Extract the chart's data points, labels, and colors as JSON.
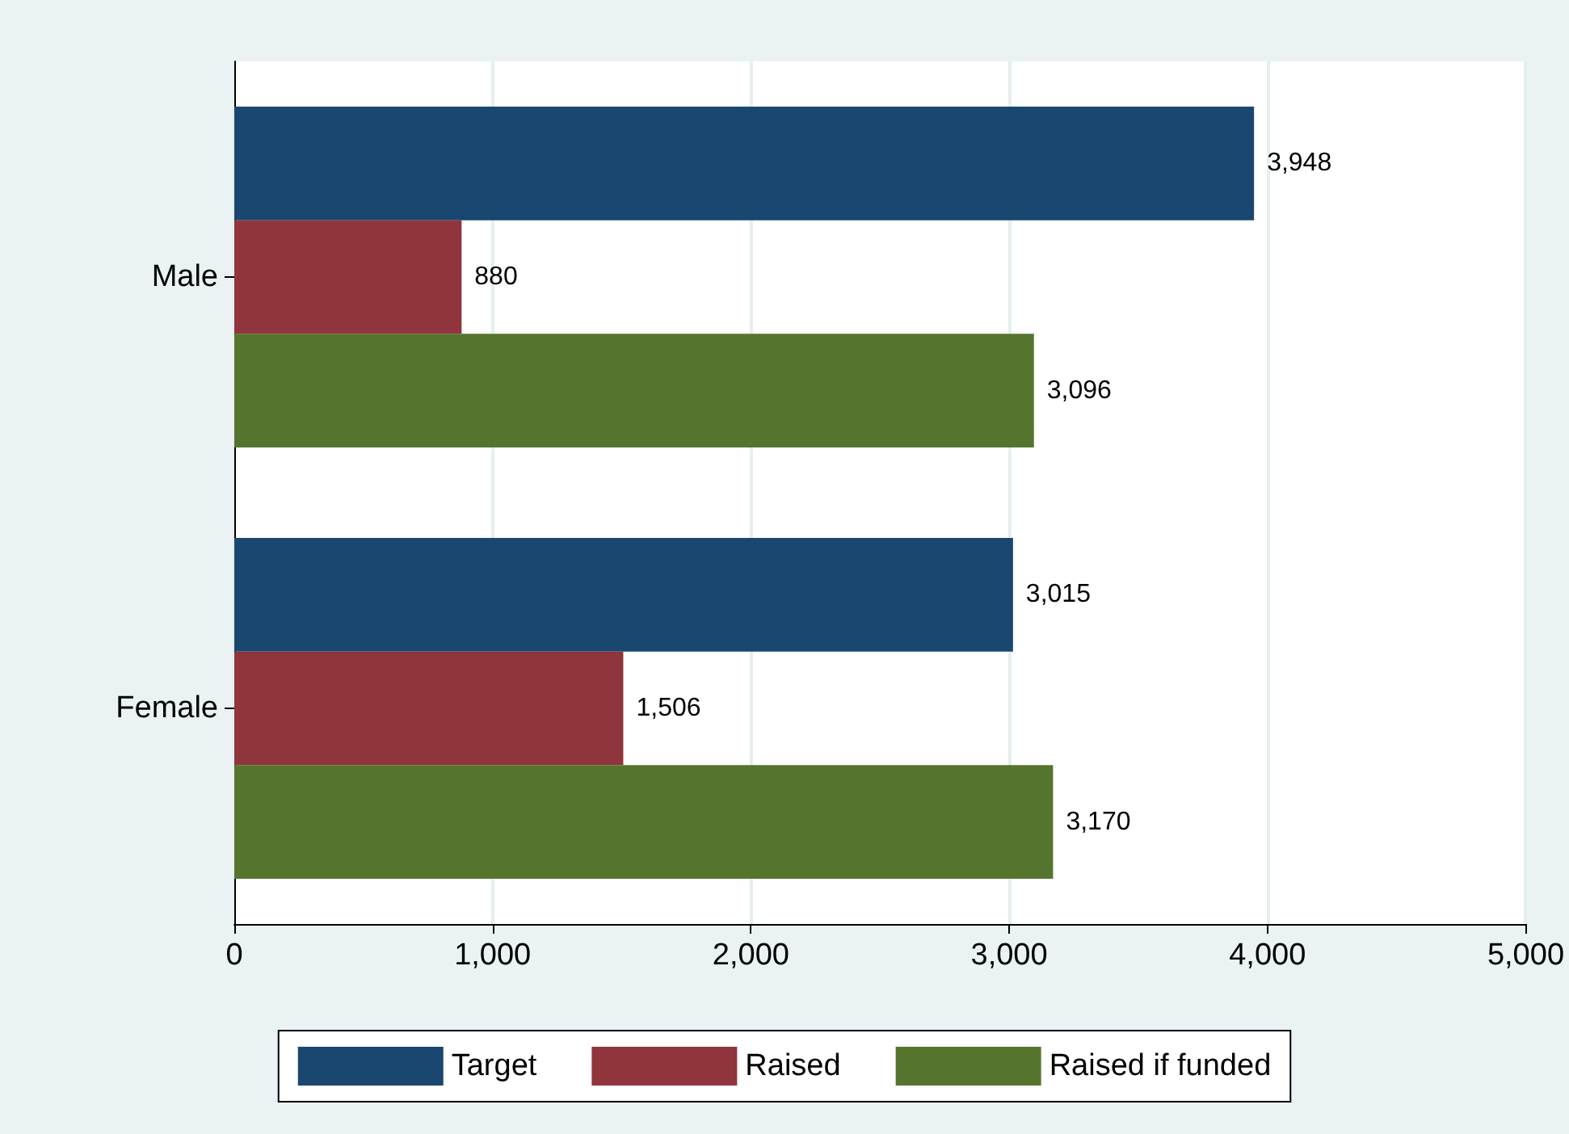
{
  "chart_data": {
    "type": "bar",
    "orientation": "horizontal",
    "categories": [
      "Male",
      "Female"
    ],
    "series": [
      {
        "name": "Target",
        "color": "#1a476f",
        "values": [
          3948,
          3015
        ],
        "value_labels": [
          "3,948",
          "3,015"
        ]
      },
      {
        "name": "Raised",
        "color": "#90353b",
        "values": [
          880,
          1506
        ],
        "value_labels": [
          "880",
          "1,506"
        ]
      },
      {
        "name": "Raised if funded",
        "color": "#55752f",
        "values": [
          3096,
          3170
        ],
        "value_labels": [
          "3,096",
          "3,170"
        ]
      }
    ],
    "xlim": [
      0,
      5000
    ],
    "xticks": [
      0,
      {
        "value": 1000,
        "label": "1,000"
      },
      {
        "value": 2000,
        "label": "2,000"
      },
      {
        "value": 3000,
        "label": "3,000"
      },
      {
        "value": 4000,
        "label": "4,000"
      },
      {
        "value": 5000,
        "label": "5,000"
      }
    ],
    "grid": "x",
    "legend": "bottom"
  }
}
